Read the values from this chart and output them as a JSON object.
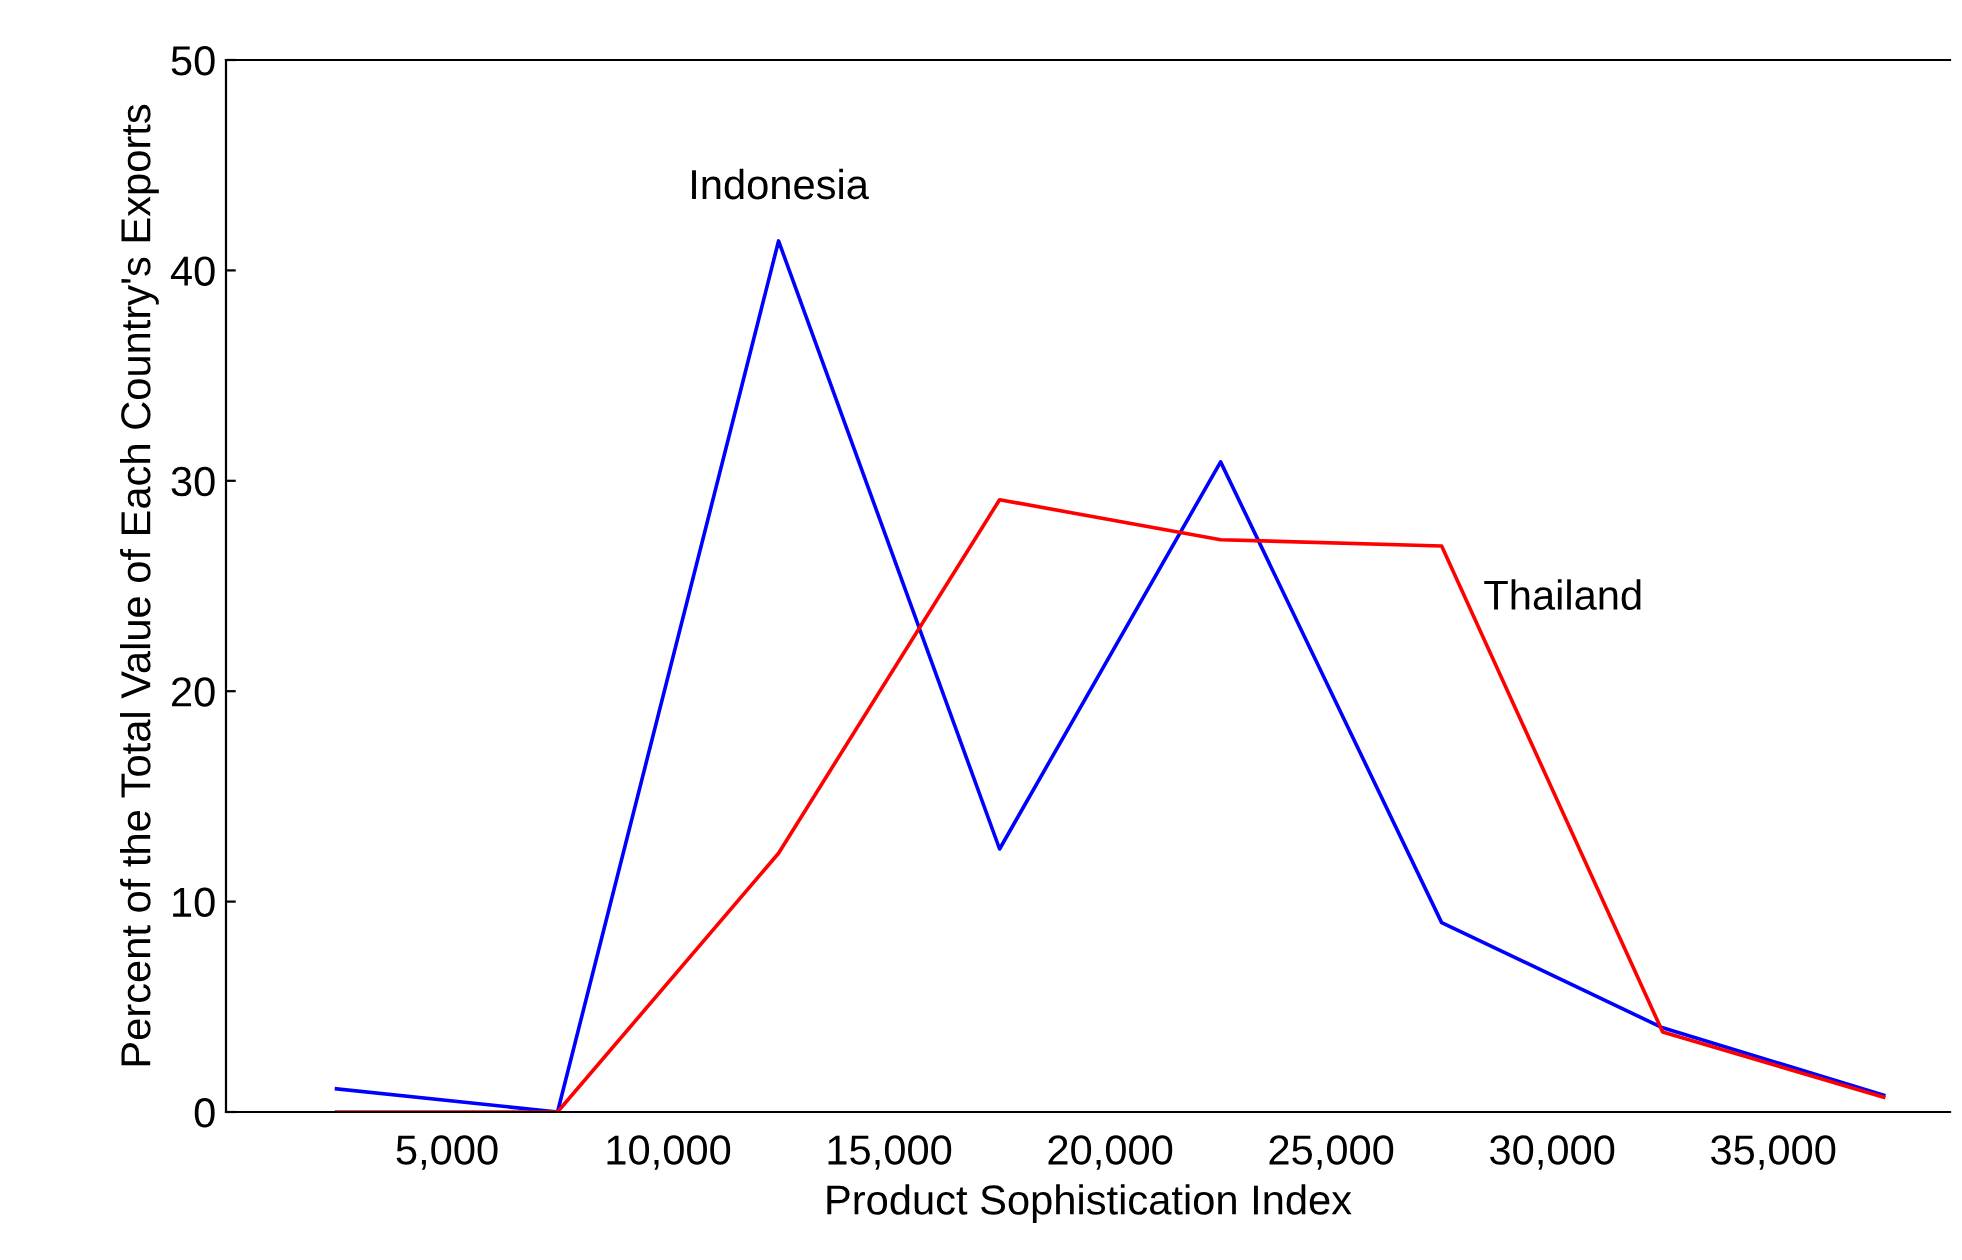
{
  "chart_data": {
    "type": "line",
    "xlabel": "Product Sophistication Index",
    "ylabel": "Percent of the Total Value of Each Country's Exports",
    "x": [
      2500,
      7500,
      12500,
      17500,
      22500,
      27500,
      32500,
      37500
    ],
    "series": [
      {
        "name": "Indonesia",
        "color": "#0000ff",
        "values": [
          1.1,
          0,
          41.4,
          12.5,
          30.9,
          9.0,
          4.0,
          0.8
        ]
      },
      {
        "name": "Thailand",
        "color": "#ff0000",
        "values": [
          0,
          0,
          12.3,
          29.1,
          27.2,
          26.9,
          3.8,
          0.7
        ]
      }
    ],
    "xlim": [
      0,
      39000
    ],
    "xticks": [
      {
        "value": 5000,
        "label": "5,000"
      },
      {
        "value": 10000,
        "label": "10,000"
      },
      {
        "value": 15000,
        "label": "15,000"
      },
      {
        "value": 20000,
        "label": "20,000"
      },
      {
        "value": 25000,
        "label": "25,000"
      },
      {
        "value": 30000,
        "label": "30,000"
      },
      {
        "value": 35000,
        "label": "35,000"
      }
    ],
    "ylim": [
      0,
      50
    ],
    "yticks": [
      0,
      10,
      20,
      30,
      40,
      50
    ],
    "grid": false,
    "legend": false,
    "marker": "none",
    "line_style": "solid"
  }
}
